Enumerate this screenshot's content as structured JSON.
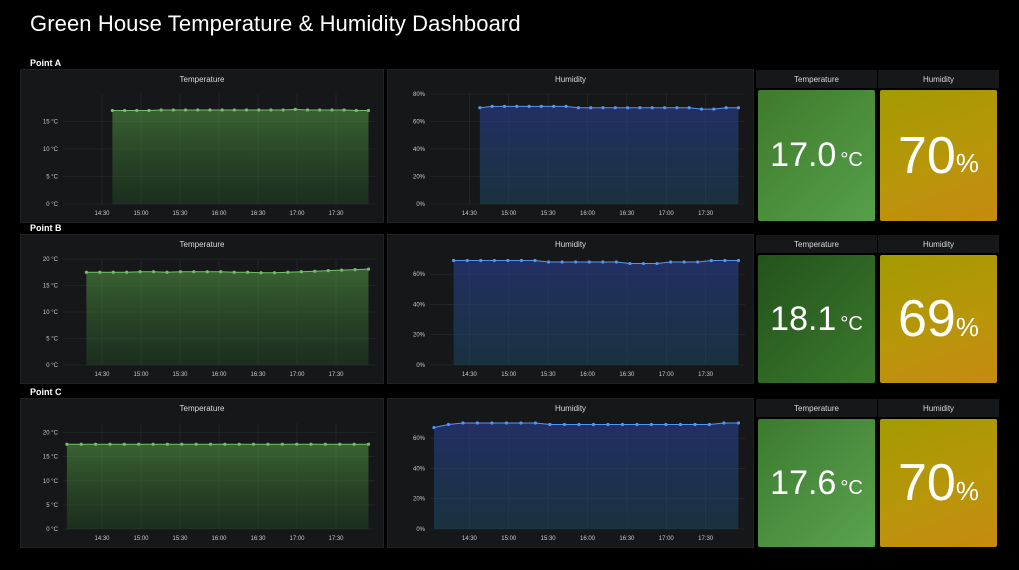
{
  "dashboard": {
    "title": "Green House Temperature & Humidity Dashboard"
  },
  "time_ticks": [
    "14:30",
    "15:00",
    "15:30",
    "16:00",
    "16:30",
    "17:00",
    "17:30"
  ],
  "rows": [
    {
      "label": "Point A",
      "temp_panel": {
        "title": "Temperature",
        "y_ticks": [
          "0 °C",
          "5 °C",
          "10 °C",
          "15 °C"
        ]
      },
      "hum_panel": {
        "title": "Humidity",
        "y_ticks": [
          "0%",
          "20%",
          "40%",
          "60%",
          "80%"
        ]
      },
      "temp_stat": {
        "title": "Temperature",
        "value": "17.0",
        "unit": "°C"
      },
      "hum_stat": {
        "title": "Humidity",
        "value": "70",
        "unit": "%"
      }
    },
    {
      "label": "Point B",
      "temp_panel": {
        "title": "Temperature",
        "y_ticks": [
          "0 °C",
          "5 °C",
          "10 °C",
          "15 °C",
          "20 °C"
        ]
      },
      "hum_panel": {
        "title": "Humidity",
        "y_ticks": [
          "0%",
          "20%",
          "40%",
          "60%"
        ]
      },
      "temp_stat": {
        "title": "Temperature",
        "value": "18.1",
        "unit": "°C"
      },
      "hum_stat": {
        "title": "Humidity",
        "value": "69",
        "unit": "%"
      }
    },
    {
      "label": "Point C",
      "temp_panel": {
        "title": "Temperature",
        "y_ticks": [
          "0 °C",
          "5 °C",
          "10 °C",
          "15 °C",
          "20 °C"
        ]
      },
      "hum_panel": {
        "title": "Humidity",
        "y_ticks": [
          "0%",
          "20%",
          "40%",
          "60%"
        ]
      },
      "temp_stat": {
        "title": "Temperature",
        "value": "17.6",
        "unit": "°C"
      },
      "hum_stat": {
        "title": "Humidity",
        "value": "70",
        "unit": "%"
      }
    }
  ],
  "chart_data": [
    {
      "type": "area",
      "panel": "Point A Temperature",
      "ylim": [
        0,
        20
      ],
      "x_start": "14:38",
      "x_end": "17:55",
      "series": [
        {
          "values": [
            17,
            17,
            17,
            17,
            17.1,
            17.1,
            17.1,
            17.1,
            17.1,
            17.1,
            17.1,
            17.1,
            17.1,
            17.1,
            17.1,
            17.2,
            17.1,
            17.1,
            17.1,
            17.1,
            17.0,
            17.0
          ]
        }
      ],
      "color": "#73bf69"
    },
    {
      "type": "area",
      "panel": "Point A Humidity",
      "ylim": [
        0,
        80
      ],
      "x_start": "14:38",
      "x_end": "17:55",
      "series": [
        {
          "values": [
            70,
            71,
            71,
            71,
            71,
            71,
            71,
            71,
            70,
            70,
            70,
            70,
            70,
            70,
            70,
            70,
            70,
            70,
            69,
            69,
            70,
            70
          ]
        }
      ],
      "color": "#5794f2"
    },
    {
      "type": "area",
      "panel": "Point B Temperature",
      "ylim": [
        0,
        20
      ],
      "x_start": "14:18",
      "x_end": "17:55",
      "series": [
        {
          "values": [
            17.5,
            17.5,
            17.5,
            17.5,
            17.6,
            17.6,
            17.5,
            17.6,
            17.6,
            17.6,
            17.6,
            17.5,
            17.5,
            17.4,
            17.4,
            17.5,
            17.6,
            17.7,
            17.8,
            17.9,
            18.0,
            18.1
          ]
        }
      ],
      "color": "#73bf69"
    },
    {
      "type": "area",
      "panel": "Point B Humidity",
      "ylim": [
        0,
        70
      ],
      "x_start": "14:18",
      "x_end": "17:55",
      "series": [
        {
          "values": [
            69,
            69,
            69,
            69,
            69,
            69,
            69,
            68,
            68,
            68,
            68,
            68,
            68,
            67,
            67,
            67,
            68,
            68,
            68,
            69,
            69,
            69
          ]
        }
      ],
      "color": "#5794f2"
    },
    {
      "type": "area",
      "panel": "Point C Temperature",
      "ylim": [
        0,
        22
      ],
      "x_start": "14:03",
      "x_end": "17:55",
      "series": [
        {
          "values": [
            17.6,
            17.6,
            17.6,
            17.6,
            17.6,
            17.6,
            17.6,
            17.6,
            17.6,
            17.6,
            17.6,
            17.6,
            17.6,
            17.6,
            17.6,
            17.6,
            17.6,
            17.6,
            17.6,
            17.6,
            17.6,
            17.6
          ]
        }
      ],
      "color": "#73bf69"
    },
    {
      "type": "area",
      "panel": "Point C Humidity",
      "ylim": [
        0,
        70
      ],
      "x_start": "14:03",
      "x_end": "17:55",
      "series": [
        {
          "values": [
            67,
            69,
            70,
            70,
            70,
            70,
            70,
            70,
            69,
            69,
            69,
            69,
            69,
            69,
            69,
            69,
            69,
            69,
            69,
            69,
            70,
            70
          ]
        }
      ],
      "color": "#5794f2"
    }
  ]
}
